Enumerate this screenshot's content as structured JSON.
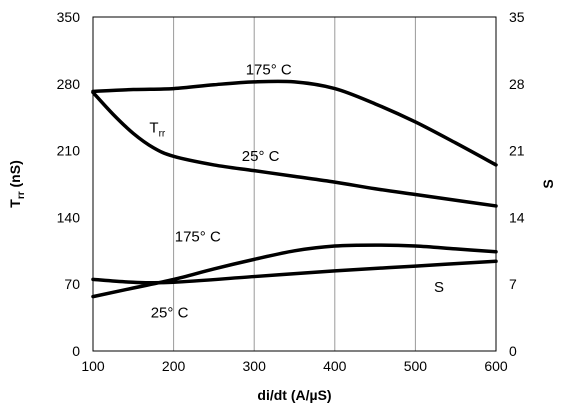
{
  "chart_data": {
    "type": "line",
    "xlabel": "di/dt (A/µS)",
    "ylabel_left": {
      "main": "T",
      "sub": "rr",
      "rest": " (nS)"
    },
    "ylabel_right": "S",
    "xlim": [
      100,
      600
    ],
    "ylim_left": [
      0,
      350
    ],
    "ylim_right": [
      0,
      35
    ],
    "x_ticks": [
      "100",
      "200",
      "300",
      "400",
      "500",
      "600"
    ],
    "y_ticks_left": [
      "0",
      "70",
      "140",
      "210",
      "280",
      "350"
    ],
    "y_ticks_right": [
      "0",
      "7",
      "14",
      "21",
      "28",
      "35"
    ],
    "grid": "vertical",
    "series": [
      {
        "x": [
          100,
          150,
          200,
          250,
          300,
          350,
          400,
          450,
          500,
          550,
          600
        ],
        "y": [
          272,
          274,
          275,
          279,
          282,
          282,
          275,
          259,
          240,
          218,
          195
        ]
      },
      {
        "x": [
          100,
          125,
          150,
          175,
          200,
          250,
          300,
          350,
          400,
          450,
          500,
          550,
          600
        ],
        "y": [
          271,
          248,
          228,
          213,
          204,
          195,
          189,
          183,
          177,
          170,
          164,
          158,
          152
        ]
      },
      {
        "x": [
          100,
          150,
          200,
          250,
          300,
          350,
          400,
          450,
          500,
          550,
          600
        ],
        "y": [
          5.7,
          6.6,
          7.5,
          8.6,
          9.6,
          10.5,
          11.0,
          11.1,
          11.0,
          10.7,
          10.4
        ]
      },
      {
        "x": [
          100,
          150,
          200,
          300,
          400,
          500,
          600
        ],
        "y": [
          7.5,
          7.2,
          7.2,
          7.8,
          8.4,
          8.9,
          9.4
        ]
      }
    ],
    "annotations": [
      {
        "text": "175° C",
        "x": 318,
        "y": 290
      },
      {
        "text": "25° C",
        "x": 308,
        "y": 199
      },
      {
        "text": "175° C",
        "x": 230,
        "y": 115
      },
      {
        "text": "25° C",
        "x": 195,
        "y": 35
      }
    ],
    "series_labels": [
      {
        "main": "T",
        "sub": "rr",
        "x": 170,
        "y": 229
      },
      {
        "main": "S",
        "x": 523,
        "y": 62
      }
    ]
  }
}
